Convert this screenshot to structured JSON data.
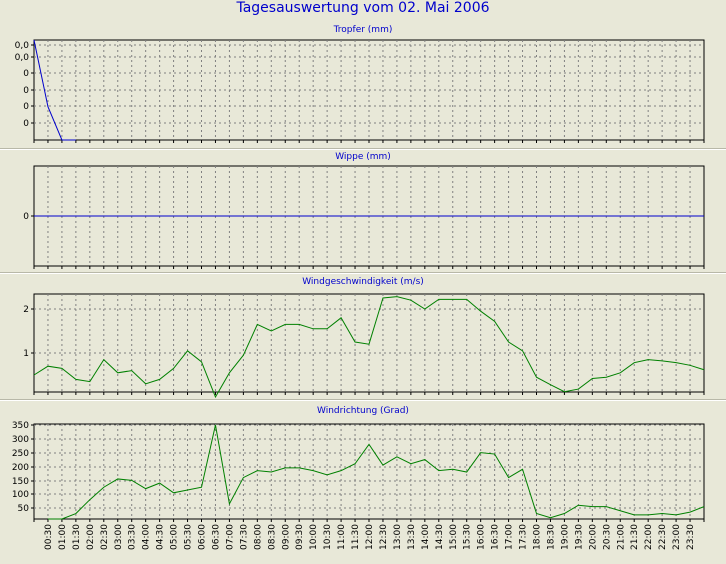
{
  "title": "Tagesauswertung vom 02. Mai 2006",
  "time_labels": [
    "00:30",
    "01:00",
    "01:30",
    "02:00",
    "02:30",
    "03:00",
    "03:30",
    "04:00",
    "04:30",
    "05:00",
    "05:30",
    "06:00",
    "06:30",
    "07:00",
    "07:30",
    "08:00",
    "08:30",
    "09:00",
    "09:30",
    "10:00",
    "10:30",
    "11:00",
    "11:30",
    "12:00",
    "12:30",
    "13:00",
    "13:30",
    "14:00",
    "14:30",
    "15:00",
    "15:30",
    "16:00",
    "16:30",
    "17:00",
    "17:30",
    "18:00",
    "18:30",
    "19:00",
    "19:30",
    "20:00",
    "20:30",
    "21:00",
    "21:30",
    "22:00",
    "22:30",
    "23:00",
    "23:30"
  ],
  "colors": {
    "tropfer": "#0000cc",
    "wippe": "#0000cc",
    "wind": "#008000",
    "grid": "#808080"
  },
  "chart_data": [
    {
      "type": "line",
      "title": "Tropfer (mm)",
      "y_tick_labels": [
        "0,0",
        "0,0",
        "0",
        "0",
        "0",
        "0"
      ],
      "grid": true,
      "x": [
        "00:00",
        "00:30",
        "01:00",
        "01:30"
      ],
      "values": [
        0.06,
        0.02,
        0.0,
        0.0
      ]
    },
    {
      "type": "line",
      "title": "Wippe (mm)",
      "y_tick_labels": [
        "0"
      ],
      "grid": true,
      "values": [
        0,
        0
      ]
    },
    {
      "type": "line",
      "title": "Windgeschwindigkeit (m/s)",
      "y_tick_labels": [
        "2",
        "1"
      ],
      "ylim": [
        0,
        2.3
      ],
      "grid": true,
      "x": [
        "00:00",
        "00:30",
        "01:00",
        "01:30",
        "02:00",
        "02:30",
        "03:00",
        "03:30",
        "04:00",
        "04:30",
        "05:00",
        "05:30",
        "06:00",
        "06:30",
        "07:00",
        "07:30",
        "08:00",
        "08:30",
        "09:00",
        "09:30",
        "10:00",
        "10:30",
        "11:00",
        "11:30",
        "12:00",
        "12:30",
        "13:00",
        "13:30",
        "14:00",
        "14:30",
        "15:00",
        "15:30",
        "16:00",
        "16:30",
        "17:00",
        "17:30",
        "18:00",
        "18:30",
        "19:00",
        "19:30",
        "20:00",
        "20:30",
        "21:00",
        "21:30",
        "22:00",
        "22:30",
        "23:00",
        "23:30",
        "24:00"
      ],
      "values": [
        0.5,
        0.7,
        0.65,
        0.4,
        0.35,
        0.85,
        0.55,
        0.6,
        0.3,
        0.4,
        0.65,
        1.05,
        0.8,
        0.0,
        0.55,
        0.95,
        1.65,
        1.5,
        1.65,
        1.65,
        1.55,
        1.55,
        1.8,
        1.25,
        1.2,
        2.25,
        2.28,
        2.2,
        2.0,
        2.22,
        2.22,
        2.22,
        1.95,
        1.72,
        1.25,
        1.05,
        0.45,
        0.28,
        0.12,
        0.18,
        0.42,
        0.45,
        0.55,
        0.78,
        0.85,
        0.82,
        0.78,
        0.72,
        0.62
      ]
    },
    {
      "type": "line",
      "title": "Windrichtung (Grad)",
      "y_tick_labels": [
        "350",
        "300",
        "250",
        "200",
        "150",
        "100",
        "50"
      ],
      "ylim": [
        0,
        360
      ],
      "grid": true,
      "x": [
        "00:00",
        "00:30",
        "01:00",
        "01:30",
        "02:00",
        "02:30",
        "03:00",
        "03:30",
        "04:00",
        "04:30",
        "05:00",
        "05:30",
        "06:00",
        "06:30",
        "07:00",
        "07:30",
        "08:00",
        "08:30",
        "09:00",
        "09:30",
        "10:00",
        "10:30",
        "11:00",
        "11:30",
        "12:00",
        "12:30",
        "13:00",
        "13:30",
        "14:00",
        "14:30",
        "15:00",
        "15:30",
        "16:00",
        "16:30",
        "17:00",
        "17:30",
        "18:00",
        "18:30",
        "19:00",
        "19:30",
        "20:00",
        "20:30",
        "21:00",
        "21:30",
        "22:00",
        "22:30",
        "23:00",
        "23:30",
        "24:00"
      ],
      "values": [
        null,
        0,
        10,
        30,
        80,
        125,
        155,
        150,
        120,
        140,
        105,
        115,
        125,
        350,
        65,
        160,
        185,
        180,
        195,
        195,
        185,
        170,
        185,
        210,
        280,
        205,
        235,
        210,
        225,
        185,
        190,
        180,
        250,
        245,
        160,
        190,
        30,
        15,
        30,
        60,
        55,
        55,
        40,
        25,
        25,
        30,
        25,
        35,
        55
      ]
    }
  ]
}
